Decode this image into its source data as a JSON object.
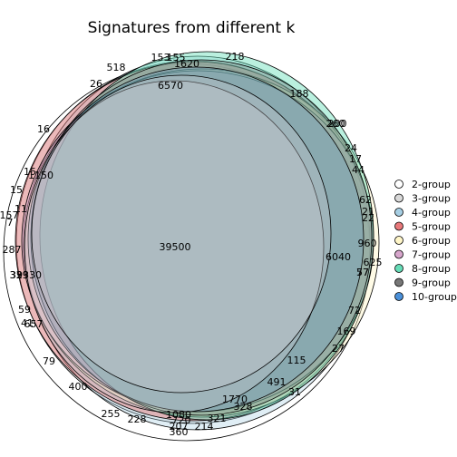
{
  "chart_data": {
    "type": "euler",
    "title": "Signatures from different k",
    "legend_position": "right",
    "sets": [
      {
        "name": "2-group",
        "color": "#ffffff"
      },
      {
        "name": "3-group",
        "color": "#d9d9d9"
      },
      {
        "name": "4-group",
        "color": "#a6cee3"
      },
      {
        "name": "5-group",
        "color": "#e8787a"
      },
      {
        "name": "6-group",
        "color": "#fff6c8"
      },
      {
        "name": "7-group",
        "color": "#d7a6cc"
      },
      {
        "name": "8-group",
        "color": "#66ddb8"
      },
      {
        "name": "9-group",
        "color": "#777777"
      },
      {
        "name": "10-group",
        "color": "#4a90d9"
      }
    ],
    "region_counts": [
      "39500",
      "6570",
      "6040",
      "2330",
      "1770",
      "1620",
      "1150",
      "1080",
      "960",
      "720",
      "657",
      "625",
      "518",
      "491",
      "400",
      "360",
      "339",
      "328",
      "321",
      "287",
      "260",
      "255",
      "228",
      "218",
      "214",
      "207",
      "200",
      "188",
      "169",
      "157",
      "155",
      "153",
      "115",
      "79",
      "77",
      "72",
      "62",
      "59",
      "57",
      "44",
      "41",
      "39",
      "31",
      "27",
      "26",
      "24",
      "22",
      "21",
      "17",
      "16",
      "15",
      "15",
      "11",
      "7"
    ]
  }
}
